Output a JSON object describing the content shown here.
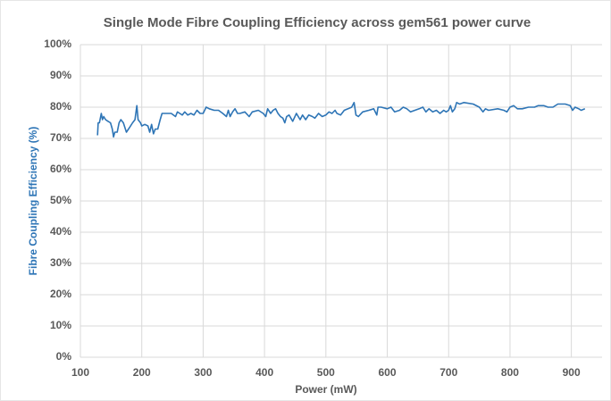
{
  "chart_data": {
    "type": "line",
    "title": "Single Mode Fibre Coupling Efficiency across gem561 power curve",
    "x_label": "Power (mW)",
    "y_label": "Fibre Coupling Efficiency (%)",
    "xlim": [
      100,
      950
    ],
    "xticks": [
      100,
      200,
      300,
      400,
      500,
      600,
      700,
      800,
      900
    ],
    "ylim": [
      0,
      100
    ],
    "yticks": [
      {
        "value": 0,
        "label": "0%"
      },
      {
        "value": 10,
        "label": "10%"
      },
      {
        "value": 20,
        "label": "20%"
      },
      {
        "value": 30,
        "label": "30%"
      },
      {
        "value": 40,
        "label": "40%"
      },
      {
        "value": 50,
        "label": "50%"
      },
      {
        "value": 60,
        "label": "60%"
      },
      {
        "value": 70,
        "label": "70%"
      },
      {
        "value": 80,
        "label": "80%"
      },
      {
        "value": 90,
        "label": "90%"
      },
      {
        "value": 100,
        "label": "100%"
      }
    ],
    "grid": true,
    "x": [
      128,
      129,
      131,
      133,
      134,
      136,
      138,
      141,
      145,
      149,
      152,
      154,
      156,
      160,
      163,
      166,
      170,
      175,
      180,
      185,
      189,
      192,
      194,
      198,
      200,
      205,
      210,
      213,
      216,
      219,
      222,
      226,
      230,
      233,
      240,
      248,
      255,
      258,
      262,
      266,
      270,
      275,
      280,
      285,
      290,
      295,
      300,
      305,
      310,
      318,
      325,
      332,
      338,
      341,
      344,
      348,
      352,
      356,
      360,
      368,
      375,
      380,
      390,
      398,
      402,
      405,
      410,
      414,
      418,
      422,
      426,
      430,
      433,
      436,
      440,
      446,
      452,
      458,
      462,
      467,
      472,
      478,
      482,
      488,
      494,
      500,
      505,
      510,
      515,
      518,
      524,
      530,
      536,
      542,
      546,
      549,
      553,
      560,
      570,
      578,
      583,
      585,
      590,
      600,
      606,
      612,
      620,
      626,
      632,
      638,
      645,
      652,
      658,
      663,
      668,
      674,
      680,
      686,
      692,
      696,
      700,
      703,
      706,
      710,
      713,
      718,
      725,
      740,
      750,
      756,
      760,
      765,
      780,
      790,
      795,
      800,
      806,
      812,
      820,
      830,
      840,
      846,
      855,
      862,
      870,
      878,
      890,
      898,
      902,
      906,
      912,
      916,
      922
    ],
    "series": [
      {
        "name": "Fibre Coupling Efficiency",
        "color": "#2e75b6",
        "values": [
          71,
          75,
          75,
          77,
          78,
          76,
          77,
          76,
          75.5,
          75,
          73,
          70.5,
          72,
          72,
          75,
          76,
          75,
          72,
          73.5,
          75,
          76,
          80.5,
          76,
          75,
          74,
          74.5,
          74,
          72,
          74.5,
          71.5,
          73,
          73,
          76,
          78,
          78,
          78,
          77,
          78.5,
          78,
          77.5,
          78.5,
          77.5,
          78,
          77.5,
          79,
          78,
          78,
          80,
          79.5,
          79,
          79,
          78,
          77,
          79,
          77,
          78.5,
          79.5,
          78,
          78,
          78.5,
          77,
          78.5,
          79,
          78,
          77,
          79.5,
          78,
          79,
          79.5,
          78,
          77,
          76.5,
          75,
          77,
          77.5,
          75.5,
          78,
          76,
          77.5,
          76,
          77.5,
          77,
          76.5,
          78,
          77,
          77.5,
          78.5,
          78,
          79,
          78,
          77.5,
          79,
          79.5,
          80,
          81.5,
          77.5,
          77,
          78.5,
          79,
          79.5,
          77.5,
          80,
          80,
          79.5,
          80,
          78.5,
          79,
          80,
          79.5,
          78.5,
          79,
          79.5,
          80,
          78.5,
          79.5,
          78.5,
          79,
          78,
          79,
          78.5,
          79,
          80.5,
          78.5,
          79.5,
          81.5,
          81,
          81.5,
          81,
          80,
          78.5,
          79.5,
          79,
          79.5,
          79,
          78.5,
          80,
          80.5,
          79.5,
          79.5,
          80,
          80,
          80.5,
          80.5,
          80,
          80,
          81,
          81,
          80.5,
          79,
          80,
          79.5,
          79,
          79.5
        ]
      }
    ]
  }
}
